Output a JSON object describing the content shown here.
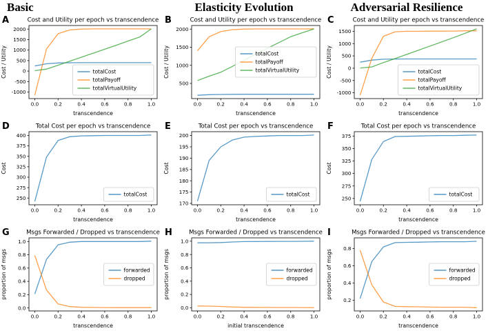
{
  "columns": [
    {
      "title": "Basic"
    },
    {
      "title": "Elasticity Evolution"
    },
    {
      "title": "Adversarial Resilience"
    }
  ],
  "colors": {
    "totalCost": "#1f77b4",
    "totalPayoff": "#ff7f0e",
    "totalVirtualUtility": "#2ca02c",
    "forwarded": "#1f77b4",
    "dropped": "#ff7f0e",
    "axes": "#000000",
    "legend_border": "#cccccc",
    "background": "#ffffff"
  },
  "chart_data": [
    {
      "id": "A",
      "type": "line",
      "title": "Cost and Utility per epoch vs transcendence",
      "xlabel": "transcendence",
      "ylabel": "Cost / Utility",
      "x": [
        0,
        0.1,
        0.2,
        0.3,
        0.4,
        0.5,
        0.6,
        0.7,
        0.8,
        0.9,
        1.0
      ],
      "xticks": [
        0,
        0.2,
        0.4,
        0.6,
        0.8,
        1.0
      ],
      "yticks": [
        -1000,
        -500,
        0,
        500,
        1000,
        1500,
        2000
      ],
      "ytick_format": "int",
      "xlim": [
        -0.05,
        1.05
      ],
      "ylim": [
        -1310,
        2170
      ],
      "grid": false,
      "legend": "lower-right",
      "series": [
        {
          "name": "totalCost",
          "color": "#1f77b4",
          "values": [
            242,
            348,
            388,
            397,
            399,
            400,
            400,
            400,
            400,
            400,
            401
          ]
        },
        {
          "name": "totalPayoff",
          "color": "#ff7f0e",
          "values": [
            -1150,
            1050,
            1780,
            1960,
            2000,
            2008,
            2008,
            2008,
            2008,
            2008,
            2008
          ]
        },
        {
          "name": "totalVirtualUtility",
          "color": "#2ca02c",
          "values": [
            20,
            95,
            280,
            470,
            660,
            850,
            1040,
            1230,
            1430,
            1620,
            2010
          ]
        }
      ]
    },
    {
      "id": "B",
      "type": "line",
      "title": "Cost and Utility per epoch vs transcendence",
      "xlabel": "transcendence",
      "ylabel": "Cost / Utility",
      "x": [
        0,
        0.1,
        0.2,
        0.3,
        0.4,
        0.5,
        0.6,
        0.7,
        0.8,
        0.9,
        1.0
      ],
      "xticks": [
        0,
        0.2,
        0.4,
        0.6,
        0.8,
        1.0
      ],
      "yticks": [
        500,
        1000,
        1500,
        2000
      ],
      "ytick_format": "int",
      "xlim": [
        -0.05,
        1.05
      ],
      "ylim": [
        80,
        2100
      ],
      "grid": false,
      "legend": "center-right",
      "series": [
        {
          "name": "totalCost",
          "color": "#1f77b4",
          "values": [
            171,
            189,
            195,
            198,
            199.5,
            200,
            200,
            200,
            200,
            200,
            200
          ]
        },
        {
          "name": "totalPayoff",
          "color": "#ff7f0e",
          "values": [
            1400,
            1790,
            1930,
            1985,
            2000,
            2005,
            2005,
            2005,
            2005,
            2005,
            2008
          ]
        },
        {
          "name": "totalVirtualUtility",
          "color": "#2ca02c",
          "values": [
            580,
            700,
            810,
            970,
            1140,
            1310,
            1470,
            1630,
            1790,
            1900,
            2005
          ]
        }
      ]
    },
    {
      "id": "C",
      "type": "line",
      "title": "Cost and Utility per epoch vs transcendence",
      "xlabel": "transcendence",
      "ylabel": "Cost / Utility",
      "x": [
        0,
        0.1,
        0.2,
        0.3,
        0.4,
        0.5,
        0.6,
        0.7,
        0.8,
        0.9,
        1.0
      ],
      "xticks": [
        0,
        0.2,
        0.4,
        0.6,
        0.8,
        1.0
      ],
      "yticks": [
        -1000,
        -500,
        0,
        500,
        1000,
        1500
      ],
      "ytick_format": "int",
      "xlim": [
        -0.05,
        1.05
      ],
      "ylim": [
        -1236,
        1736
      ],
      "grid": false,
      "legend": "lower-right",
      "series": [
        {
          "name": "totalCost",
          "color": "#1f77b4",
          "values": [
            244,
            328,
            364,
            374,
            375,
            375,
            376,
            376,
            376,
            376,
            377
          ]
        },
        {
          "name": "totalPayoff",
          "color": "#ff7f0e",
          "values": [
            -1100,
            400,
            1300,
            1480,
            1500,
            1500,
            1505,
            1505,
            1510,
            1520,
            1520
          ]
        },
        {
          "name": "totalVirtualUtility",
          "color": "#2ca02c",
          "values": [
            10,
            50,
            230,
            390,
            560,
            730,
            900,
            1070,
            1240,
            1420,
            1600
          ]
        }
      ]
    },
    {
      "id": "D",
      "type": "line",
      "title": "Total Cost per epoch vs transcendence",
      "xlabel": "transcendence",
      "ylabel": "Cost",
      "x": [
        0,
        0.1,
        0.2,
        0.3,
        0.4,
        0.5,
        0.6,
        0.7,
        0.8,
        0.9,
        1.0
      ],
      "xticks": [
        0,
        0.2,
        0.4,
        0.6,
        0.8,
        1.0
      ],
      "yticks": [
        250,
        275,
        300,
        325,
        350,
        375,
        400
      ],
      "ytick_format": "int",
      "xlim": [
        -0.05,
        1.05
      ],
      "ylim": [
        234,
        409
      ],
      "grid": false,
      "legend": "lower-right",
      "series": [
        {
          "name": "totalCost",
          "color": "#1f77b4",
          "values": [
            242,
            348,
            388,
            397,
            399,
            399.5,
            400,
            400,
            400,
            400,
            401
          ]
        }
      ]
    },
    {
      "id": "E",
      "type": "line",
      "title": "Total Cost per epoch vs transcendence",
      "xlabel": "transcendence",
      "ylabel": "Cost",
      "x": [
        0,
        0.1,
        0.2,
        0.3,
        0.4,
        0.5,
        0.6,
        0.7,
        0.8,
        0.9,
        1.0
      ],
      "xticks": [
        0,
        0.2,
        0.4,
        0.6,
        0.8,
        1.0
      ],
      "yticks": [
        170,
        175,
        180,
        185,
        190,
        195,
        200
      ],
      "ytick_format": "int",
      "xlim": [
        -0.05,
        1.05
      ],
      "ylim": [
        169.4,
        201.7
      ],
      "grid": false,
      "legend": "lower-right",
      "series": [
        {
          "name": "totalCost",
          "color": "#1f77b4",
          "values": [
            171,
            189,
            195,
            198,
            199.3,
            199.6,
            199.8,
            200,
            200,
            200,
            200.2
          ]
        }
      ]
    },
    {
      "id": "F",
      "type": "line",
      "title": "Total Cost per epoch vs transcendence",
      "xlabel": "transcendence",
      "ylabel": "Cost",
      "x": [
        0,
        0.1,
        0.2,
        0.3,
        0.4,
        0.5,
        0.6,
        0.7,
        0.8,
        0.9,
        1.0
      ],
      "xticks": [
        0,
        0.2,
        0.4,
        0.6,
        0.8,
        1.0
      ],
      "yticks": [
        250,
        275,
        300,
        325,
        350,
        375
      ],
      "ytick_format": "int",
      "xlim": [
        -0.05,
        1.05
      ],
      "ylim": [
        237.3,
        383.7
      ],
      "grid": false,
      "legend": "lower-right",
      "series": [
        {
          "name": "totalCost",
          "color": "#1f77b4",
          "values": [
            244,
            328,
            364,
            374,
            374.5,
            375,
            375.5,
            376,
            376,
            376.5,
            377
          ]
        }
      ]
    },
    {
      "id": "G",
      "type": "line",
      "title": "Msgs Forwarded / Dropped vs transcendence",
      "xlabel": "transcendence",
      "ylabel": "proportion of msgs",
      "x": [
        0,
        0.1,
        0.2,
        0.3,
        0.4,
        0.5,
        0.6,
        0.7,
        0.8,
        0.9,
        1.0
      ],
      "xticks": [
        0,
        0.2,
        0.4,
        0.6,
        0.8,
        1.0
      ],
      "yticks": [
        0,
        0.2,
        0.4,
        0.6,
        0.8,
        1.0
      ],
      "ytick_format": "1dp",
      "xlim": [
        -0.05,
        1.05
      ],
      "ylim": [
        -0.045,
        1.055
      ],
      "grid": false,
      "legend": "center-right",
      "series": [
        {
          "name": "forwarded",
          "color": "#1f77b4",
          "values": [
            0.21,
            0.73,
            0.95,
            0.99,
            1.0,
            1.0,
            1.0,
            1.0,
            1.0,
            1.0,
            1.005
          ]
        },
        {
          "name": "dropped",
          "color": "#ff7f0e",
          "values": [
            0.79,
            0.27,
            0.06,
            0.02,
            0.01,
            0.008,
            0.006,
            0.005,
            0.005,
            0.005,
            0.005
          ]
        }
      ]
    },
    {
      "id": "H",
      "type": "line",
      "title": "Msgs Forwarded / Dropped vs transcendence",
      "xlabel": "initial transcendence",
      "ylabel": "proportion of msgs",
      "x": [
        0,
        0.1,
        0.2,
        0.3,
        0.4,
        0.5,
        0.6,
        0.7,
        0.8,
        0.9,
        1.0
      ],
      "xticks": [
        0,
        0.2,
        0.4,
        0.6,
        0.8,
        1.0
      ],
      "yticks": [
        0,
        0.2,
        0.4,
        0.6,
        0.8,
        1.0
      ],
      "ytick_format": "1dp",
      "xlim": [
        -0.05,
        1.05
      ],
      "ylim": [
        -0.047,
        1.05
      ],
      "grid": false,
      "legend": "center-right",
      "series": [
        {
          "name": "forwarded",
          "color": "#1f77b4",
          "values": [
            0.975,
            0.977,
            0.98,
            0.988,
            0.994,
            0.995,
            0.996,
            0.997,
            0.997,
            0.998,
            1.0
          ]
        },
        {
          "name": "dropped",
          "color": "#ff7f0e",
          "values": [
            0.028,
            0.025,
            0.02,
            0.012,
            0.008,
            0.007,
            0.006,
            0.005,
            0.005,
            0.004,
            0.003
          ]
        }
      ]
    },
    {
      "id": "I",
      "type": "line",
      "title": "Msgs Forwarded / Dropped vs transcendence",
      "xlabel": "transcendence",
      "ylabel": "proportion of msgs",
      "x": [
        0,
        0.1,
        0.2,
        0.3,
        0.4,
        0.5,
        0.6,
        0.7,
        0.8,
        0.9,
        1.0
      ],
      "xticks": [
        0,
        0.2,
        0.4,
        0.6,
        0.8,
        1.0
      ],
      "yticks": [
        0.2,
        0.4,
        0.6,
        0.8
      ],
      "ytick_format": "1dp",
      "xlim": [
        -0.05,
        1.05
      ],
      "ylim": [
        0.077,
        0.925
      ],
      "grid": false,
      "legend": "center-right",
      "series": [
        {
          "name": "forwarded",
          "color": "#1f77b4",
          "values": [
            0.22,
            0.65,
            0.82,
            0.87,
            0.873,
            0.875,
            0.878,
            0.88,
            0.88,
            0.88,
            0.885
          ]
        },
        {
          "name": "dropped",
          "color": "#ff7f0e",
          "values": [
            0.78,
            0.38,
            0.18,
            0.13,
            0.127,
            0.125,
            0.122,
            0.12,
            0.12,
            0.12,
            0.115
          ]
        }
      ]
    }
  ]
}
